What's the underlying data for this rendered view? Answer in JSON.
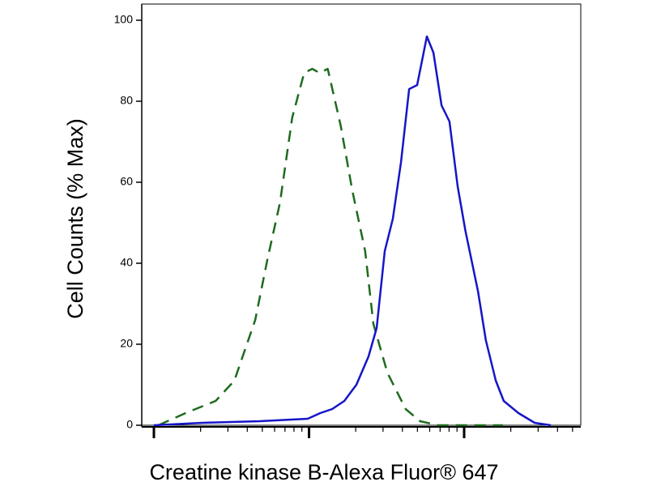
{
  "chart_data": {
    "type": "line",
    "x_label": "Creatine kinase B-Alexa Fluor® 647",
    "y_label": "Cell Counts (% Max)",
    "xscale": "log",
    "xlim": [
      0.835,
      565
    ],
    "xticks": [
      1,
      10,
      100
    ],
    "xminorticks": [
      2,
      3,
      4,
      5,
      6,
      7,
      8,
      9,
      20,
      30,
      40,
      50,
      60,
      70,
      80,
      90,
      200,
      300,
      400,
      500
    ],
    "ylim": [
      0,
      104
    ],
    "yticks": [
      0,
      20,
      40,
      60,
      80,
      100
    ],
    "series": [
      {
        "color": "#1e6b1e",
        "dashed": true,
        "x": [
          1.07,
          1.6,
          2.5,
          3.3,
          4.5,
          5.4,
          6.5,
          7.8,
          9.3,
          10.5,
          11.7,
          13.2,
          16,
          19,
          23,
          26,
          32,
          42,
          52,
          68,
          178
        ],
        "values": [
          0,
          3,
          6,
          11,
          26,
          41,
          55,
          76,
          87,
          88,
          87,
          88,
          74,
          58,
          43,
          25,
          13,
          4,
          1,
          0,
          0
        ]
      },
      {
        "color": "#1515c8",
        "dashed": false,
        "x": [
          1,
          2.06,
          4.8,
          7.7,
          9.8,
          11.8,
          14.1,
          16.9,
          20.2,
          24.2,
          27.3,
          30.8,
          34.7,
          39.2,
          44.2,
          49.8,
          57.5,
          63.4,
          71.5,
          80.5,
          90.8,
          102,
          123,
          138,
          160,
          180,
          224,
          285,
          362
        ],
        "values": [
          0,
          0.6,
          1,
          1.4,
          1.6,
          3,
          4,
          6,
          10,
          17,
          24,
          43,
          51,
          65,
          83,
          84,
          96,
          92,
          79,
          75,
          59,
          48,
          33,
          21,
          11,
          6,
          3,
          0.6,
          0
        ]
      }
    ]
  }
}
